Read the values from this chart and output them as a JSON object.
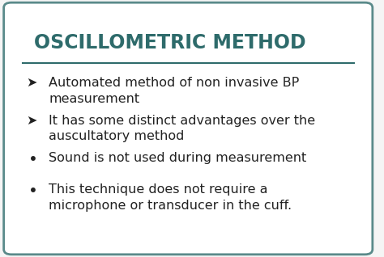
{
  "title": "OSCILLOMETRIC METHOD",
  "title_color": "#2E6B6B",
  "title_fontsize": 17,
  "line_color": "#2E6B6B",
  "background_color": "#f5f5f5",
  "border_color": "#5a8a8a",
  "text_color": "#222222",
  "bullet_arrow_items": [
    "Automated method of non invasive BP\nmeasurement",
    "It has some distinct advantages over the\nauscultatory method"
  ],
  "bullet_dot_items": [
    "Sound is not used during measurement",
    "This technique does not require a\nmicrophone or transducer in the cuff."
  ],
  "arrow_symbol": "➤",
  "dot_symbol": "•",
  "text_fontsize": 11.5,
  "indent_arrow": 0.07,
  "indent_dot": 0.075,
  "text_indent": 0.13
}
